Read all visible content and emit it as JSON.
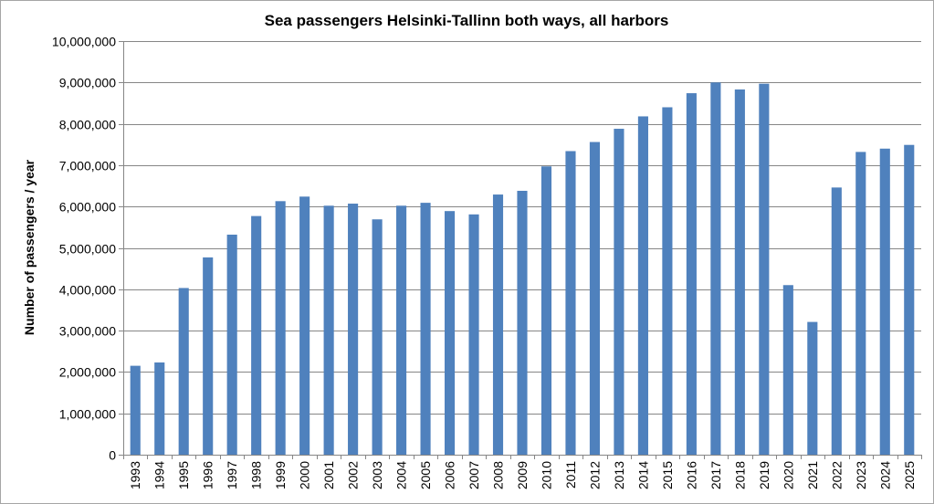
{
  "chart_data": {
    "type": "bar",
    "title": "Sea passengers Helsinki-Tallinn both ways, all harbors",
    "xlabel": "",
    "ylabel": "Number of passengers / year",
    "categories": [
      "1993",
      "1994",
      "1995",
      "1996",
      "1997",
      "1998",
      "1999",
      "2000",
      "2001",
      "2002",
      "2003",
      "2004",
      "2005",
      "2006",
      "2007",
      "2008",
      "2009",
      "2010",
      "2011",
      "2012",
      "2013",
      "2014",
      "2015",
      "2016",
      "2017",
      "2018",
      "2019",
      "2020",
      "2021",
      "2022",
      "2023",
      "2024",
      "2025"
    ],
    "values": [
      2150000,
      2230000,
      4030000,
      4770000,
      5320000,
      5770000,
      6130000,
      6240000,
      6020000,
      6070000,
      5690000,
      6020000,
      6090000,
      5890000,
      5810000,
      6290000,
      6380000,
      6970000,
      7340000,
      7560000,
      7880000,
      8180000,
      8400000,
      8740000,
      9000000,
      8830000,
      8970000,
      4100000,
      3210000,
      6460000,
      7320000,
      7400000,
      7490000
    ],
    "ylim": [
      0,
      10000000
    ],
    "yticks": [
      0,
      1000000,
      2000000,
      3000000,
      4000000,
      5000000,
      6000000,
      7000000,
      8000000,
      9000000,
      10000000
    ],
    "ytick_labels": [
      "0",
      "1,000,000",
      "2,000,000",
      "3,000,000",
      "4,000,000",
      "5,000,000",
      "6,000,000",
      "7,000,000",
      "8,000,000",
      "9,000,000",
      "10,000,000"
    ],
    "grid": true,
    "legend": "none",
    "colors": {
      "bar": "#4f81bd",
      "grid": "#868686",
      "axis": "#868686"
    }
  }
}
